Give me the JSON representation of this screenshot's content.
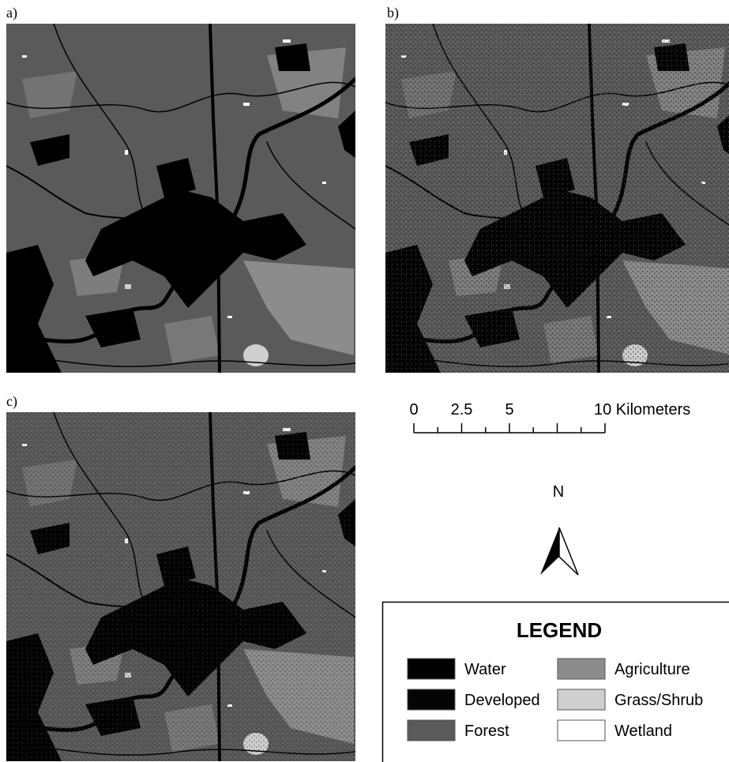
{
  "panels": [
    {
      "label": "a)"
    },
    {
      "label": "b)"
    },
    {
      "label": "c)"
    }
  ],
  "scale_bar": {
    "labels": [
      "0",
      "2.5",
      "5",
      "10 Kilometers"
    ]
  },
  "north_arrow": {
    "label": "N"
  },
  "legend": {
    "title": "LEGEND",
    "items": [
      {
        "label": "Water",
        "color": "#000000"
      },
      {
        "label": "Developed",
        "color": "#050505"
      },
      {
        "label": "Forest",
        "color": "#5a5a5a"
      },
      {
        "label": "Agriculture",
        "color": "#8c8c8c"
      },
      {
        "label": "Grass/Shrub",
        "color": "#cfcfcf"
      },
      {
        "label": "Wetland",
        "color": "#ffffff"
      }
    ]
  }
}
